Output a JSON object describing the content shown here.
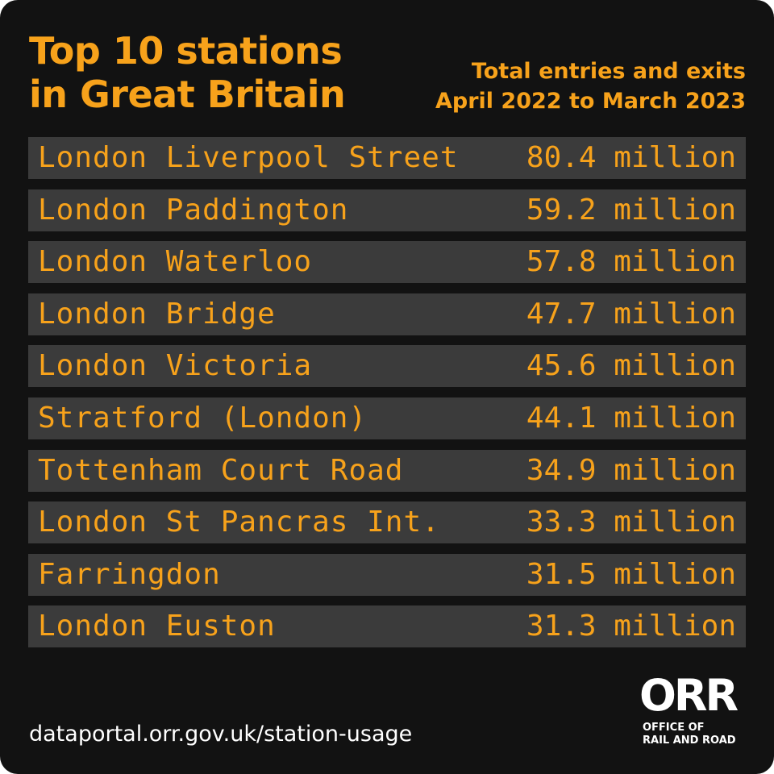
{
  "header": {
    "title": [
      "Top 10 stations",
      "in Great Britain"
    ],
    "subtitle": [
      "Total entries and exits",
      "April 2022 to March 2023"
    ]
  },
  "table": {
    "rows": [
      [
        "London Liverpool Street",
        "80.4 million"
      ],
      [
        "London Paddington",
        "59.2 million"
      ],
      [
        "London Waterloo",
        "57.8 million"
      ],
      [
        "London Bridge",
        "47.7 million"
      ],
      [
        "London Victoria",
        "45.6 million"
      ],
      [
        "Stratford (London)",
        "44.1 million"
      ],
      [
        "Tottenham Court Road",
        "34.9 million"
      ],
      [
        "London St Pancras Int.",
        "33.3 million"
      ],
      [
        "Farringdon",
        "31.5 million"
      ],
      [
        "London Euston",
        "31.3 million"
      ]
    ]
  },
  "footer": {
    "url": "dataportal.orr.gov.uk/station-usage",
    "logo": "ORR",
    "logo_lines": [
      "OFFICE OF",
      "RAIL AND ROAD"
    ]
  }
}
